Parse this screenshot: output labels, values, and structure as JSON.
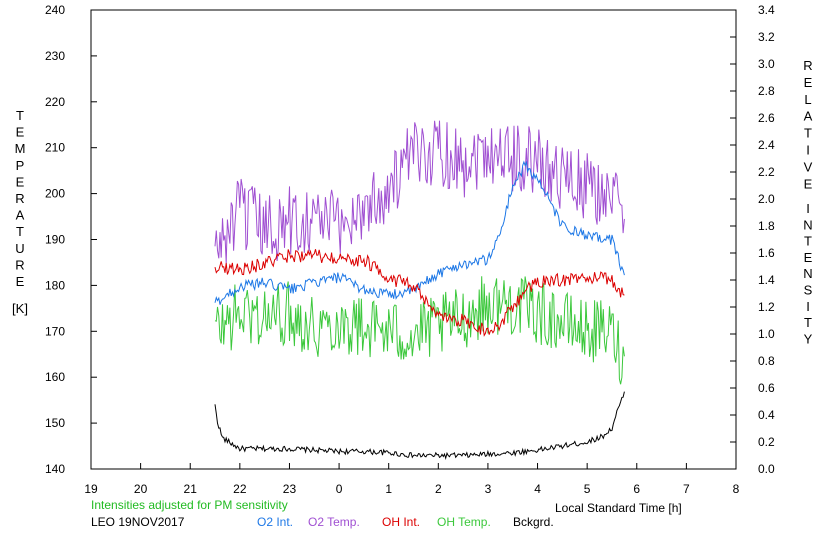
{
  "chart_data": {
    "type": "line",
    "left_axis": {
      "label_letters": [
        "T",
        "E",
        "M",
        "P",
        "E",
        "R",
        "A",
        "T",
        "U",
        "R",
        "E"
      ],
      "unit": "[K]",
      "range": [
        140,
        240
      ],
      "ticks": [
        "140",
        "150",
        "160",
        "170",
        "180",
        "190",
        "200",
        "210",
        "220",
        "230",
        "240"
      ]
    },
    "right_axis": {
      "label_word1": [
        "R",
        "E",
        "L",
        "A",
        "T",
        "I",
        "V",
        "E"
      ],
      "label_word2": [
        "I",
        "N",
        "T",
        "E",
        "N",
        "S",
        "I",
        "T",
        "Y"
      ],
      "range": [
        0.0,
        3.4
      ],
      "ticks": [
        "0.0",
        "0.2",
        "0.4",
        "0.6",
        "0.8",
        "1.0",
        "1.2",
        "1.4",
        "1.6",
        "1.8",
        "2.0",
        "2.2",
        "2.4",
        "2.6",
        "2.8",
        "3.0",
        "3.2",
        "3.4"
      ]
    },
    "x_axis": {
      "label": "Local Standard Time [h]",
      "range": [
        19,
        32
      ],
      "ticks": [
        "19",
        "20",
        "21",
        "22",
        "23",
        "0",
        "1",
        "2",
        "3",
        "4",
        "5",
        "6",
        "7",
        "8"
      ]
    },
    "note": "Intensities adjusted for PM sensitivity",
    "station_date": "LEO 19NOV2017",
    "colors": {
      "o2_int": "#1e78e6",
      "o2_temp": "#a050d2",
      "oh_int": "#dc0000",
      "oh_temp": "#3cc83c",
      "bckgrd": "#000000",
      "note": "#22bb22"
    },
    "series": [
      {
        "name": "O2 Int.",
        "axis": "right",
        "x": [
          21.5,
          22.0,
          22.5,
          23.0,
          23.5,
          24.0,
          24.5,
          25.0,
          25.5,
          26.0,
          26.5,
          27.0,
          27.25,
          27.5,
          27.75,
          28.0,
          28.5,
          29.0,
          29.5,
          29.75
        ],
        "y": [
          1.23,
          1.35,
          1.38,
          1.33,
          1.38,
          1.42,
          1.33,
          1.29,
          1.32,
          1.45,
          1.52,
          1.55,
          1.75,
          2.1,
          2.25,
          2.15,
          1.8,
          1.72,
          1.7,
          1.43
        ]
      },
      {
        "name": "O2 Temp.",
        "axis": "left",
        "x": [
          21.5,
          22.0,
          22.5,
          23.0,
          23.5,
          24.0,
          24.5,
          25.0,
          25.5,
          26.0,
          26.5,
          27.0,
          27.5,
          28.0,
          28.5,
          29.0,
          29.5,
          29.75
        ],
        "y": [
          187,
          196,
          192,
          194,
          195,
          193,
          197,
          201,
          208,
          210,
          207,
          210,
          208,
          207,
          204,
          201,
          200,
          193
        ]
      },
      {
        "name": "OH Int.",
        "axis": "right",
        "x": [
          21.5,
          22.0,
          22.5,
          23.0,
          23.5,
          24.0,
          24.5,
          25.0,
          25.5,
          26.0,
          26.5,
          27.0,
          27.25,
          27.5,
          27.75,
          28.0,
          28.5,
          29.0,
          29.5,
          29.75
        ],
        "y": [
          1.5,
          1.48,
          1.52,
          1.58,
          1.58,
          1.55,
          1.55,
          1.42,
          1.35,
          1.12,
          1.1,
          1.02,
          1.08,
          1.2,
          1.32,
          1.38,
          1.4,
          1.42,
          1.4,
          1.28
        ]
      },
      {
        "name": "OH Temp.",
        "axis": "left",
        "x": [
          21.5,
          22.0,
          22.5,
          23.0,
          23.5,
          24.0,
          24.5,
          25.0,
          25.5,
          26.0,
          26.5,
          27.0,
          27.5,
          28.0,
          28.5,
          29.0,
          29.5,
          29.75
        ],
        "y": [
          170,
          174,
          173,
          174,
          171,
          172,
          171,
          170,
          169,
          171,
          173,
          176,
          176,
          174,
          172,
          170,
          170,
          163
        ]
      },
      {
        "name": "Bckgrd.",
        "axis": "right",
        "x": [
          21.5,
          21.55,
          21.65,
          22.0,
          22.5,
          23.0,
          23.5,
          24.0,
          24.5,
          25.0,
          25.5,
          26.0,
          26.5,
          27.0,
          27.5,
          28.0,
          28.5,
          29.0,
          29.3,
          29.5,
          29.6,
          29.75
        ],
        "y": [
          0.47,
          0.35,
          0.23,
          0.15,
          0.15,
          0.15,
          0.14,
          0.13,
          0.13,
          0.12,
          0.1,
          0.1,
          0.1,
          0.11,
          0.12,
          0.14,
          0.17,
          0.2,
          0.24,
          0.3,
          0.42,
          0.56
        ]
      }
    ]
  }
}
